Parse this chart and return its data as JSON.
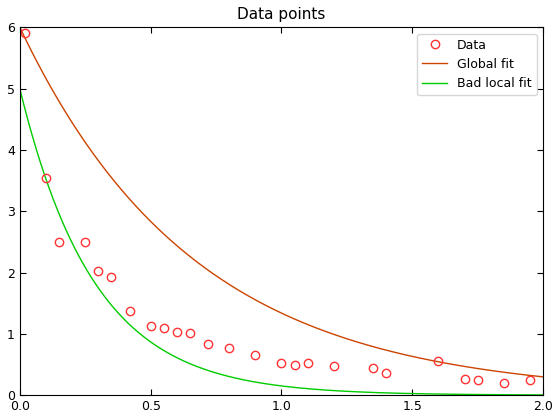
{
  "title": "Data points",
  "xlim": [
    0,
    2
  ],
  "ylim": [
    0,
    6
  ],
  "xticks": [
    0,
    0.5,
    1,
    1.5,
    2
  ],
  "yticks": [
    0,
    1,
    2,
    3,
    4,
    5,
    6
  ],
  "data_x": [
    0.02,
    0.1,
    0.15,
    0.25,
    0.3,
    0.35,
    0.42,
    0.5,
    0.55,
    0.6,
    0.65,
    0.72,
    0.8,
    0.9,
    1.0,
    1.05,
    1.1,
    1.2,
    1.35,
    1.4,
    1.6,
    1.7,
    1.75,
    1.85,
    1.95
  ],
  "data_y": [
    5.9,
    3.55,
    2.5,
    2.5,
    2.02,
    1.92,
    1.37,
    1.13,
    1.1,
    1.03,
    1.02,
    0.83,
    0.77,
    0.65,
    0.53,
    0.5,
    0.52,
    0.47,
    0.44,
    0.37,
    0.55,
    0.27,
    0.25,
    0.2,
    0.24
  ],
  "global_fit_A": 6.0,
  "global_fit_b": 1.5,
  "bad_local_fit_A": 5.0,
  "bad_local_fit_b": 3.5,
  "data_color": "#ff3333",
  "global_fit_color": "#cc4400",
  "bad_local_fit_color": "#00cc00",
  "marker_size": 6,
  "marker_edge_width": 1.0,
  "line_width": 1.0,
  "title_fontsize": 11,
  "legend_labels": [
    "Data",
    "Global fit",
    "Bad local fit"
  ],
  "legend_fontsize": 9,
  "tick_labelsize": 9,
  "fig_width": 5.6,
  "fig_height": 4.2,
  "dpi": 100
}
